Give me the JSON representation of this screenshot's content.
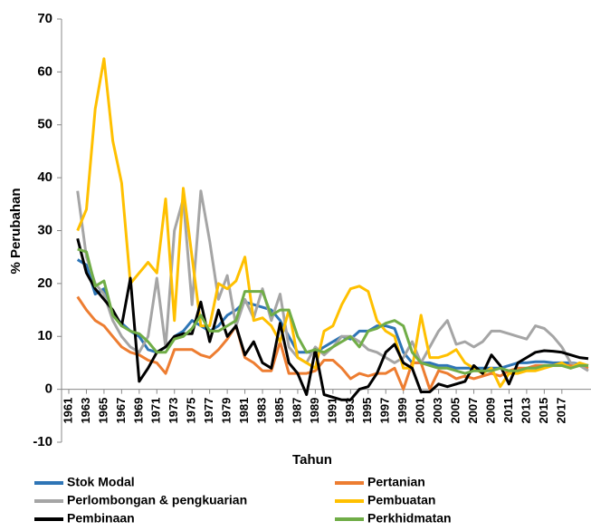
{
  "chart_data": {
    "type": "line",
    "x_label": "Tahun",
    "y_label": "% Perubahan",
    "x": [
      1962,
      1963,
      1964,
      1965,
      1966,
      1967,
      1968,
      1969,
      1970,
      1971,
      1972,
      1973,
      1974,
      1975,
      1976,
      1977,
      1978,
      1979,
      1980,
      1981,
      1982,
      1983,
      1984,
      1985,
      1986,
      1987,
      1988,
      1989,
      1990,
      1991,
      1992,
      1993,
      1994,
      1995,
      1996,
      1997,
      1998,
      1999,
      2000,
      2001,
      2002,
      2003,
      2004,
      2005,
      2006,
      2007,
      2008,
      2009,
      2010,
      2011,
      2012,
      2013,
      2014,
      2015,
      2016,
      2017,
      2018,
      2019,
      2020
    ],
    "xlim": [
      1961,
      2020
    ],
    "xticks": [
      1961,
      1963,
      1965,
      1967,
      1969,
      1971,
      1973,
      1975,
      1977,
      1979,
      1981,
      1983,
      1985,
      1987,
      1989,
      1991,
      1993,
      1995,
      1997,
      1999,
      2001,
      2003,
      2005,
      2007,
      2009,
      2011,
      2013,
      2015,
      2017
    ],
    "ylim": [
      -10,
      70
    ],
    "yticks": [
      -10,
      0,
      10,
      20,
      30,
      40,
      50,
      60,
      70
    ],
    "grid": false,
    "series": [
      {
        "name": "Stok Modal",
        "color": "#2e75b6",
        "values": [
          24.5,
          23.5,
          18,
          19,
          14,
          12.5,
          11,
          10,
          7.5,
          7,
          8,
          10,
          11,
          13,
          12,
          11,
          12,
          14,
          15,
          16.5,
          16,
          15.5,
          15,
          13,
          10,
          7,
          7,
          7,
          8,
          9,
          10,
          9.5,
          11,
          11,
          12,
          12,
          11.5,
          7,
          5,
          5,
          5,
          4.5,
          4.5,
          4,
          4,
          4,
          4,
          4,
          4,
          4.5,
          5,
          5,
          5.2,
          5.2,
          5,
          5,
          5,
          4.8,
          4.5
        ]
      },
      {
        "name": "Pertanian",
        "color": "#ed7d31",
        "values": [
          17.5,
          15,
          13,
          12,
          10,
          8,
          7,
          6.5,
          5.5,
          5,
          3,
          7.5,
          7.5,
          7.5,
          6.5,
          6,
          7.5,
          9.5,
          12,
          6,
          5,
          3.5,
          3.5,
          9,
          3,
          3,
          3,
          3.5,
          5.5,
          5.5,
          4,
          2,
          3,
          2.5,
          3,
          3,
          4,
          0,
          5,
          5,
          0,
          3.5,
          3,
          2,
          2.5,
          2,
          2.5,
          3,
          2.5,
          3.5,
          4,
          4,
          4.5,
          4.5,
          4.5,
          4.5,
          4.5,
          4.5,
          4
        ]
      },
      {
        "name": "Perlombongan & pengkuarian",
        "color": "#a5a5a5",
        "values": [
          37.5,
          25,
          20,
          18,
          13,
          10,
          8,
          7,
          10,
          21,
          8,
          30,
          36,
          16,
          37.5,
          28,
          17,
          21.5,
          12,
          17,
          13.5,
          19,
          13,
          18,
          8,
          6,
          5,
          8,
          6.5,
          8,
          10,
          10,
          9,
          7.5,
          7,
          6,
          5,
          6,
          9,
          5,
          8,
          11,
          13,
          8.5,
          9,
          8,
          9,
          11,
          11,
          10.5,
          10,
          9.5,
          12,
          11.5,
          10,
          8,
          5,
          4.5,
          3.5
        ]
      },
      {
        "name": "Pembuatan",
        "color": "#ffc000",
        "values": [
          30,
          34,
          53,
          62.5,
          47,
          39,
          20,
          22,
          24,
          22,
          36,
          13,
          38,
          25,
          12,
          12,
          20,
          19,
          20.5,
          25,
          13,
          13.5,
          12,
          9,
          15,
          6,
          5,
          4,
          11,
          12,
          16,
          19,
          19.5,
          18.5,
          13,
          11,
          10,
          4,
          4,
          14,
          6,
          6,
          6.5,
          7.5,
          5,
          4,
          3,
          4,
          0.5,
          3,
          3,
          3.5,
          3.5,
          4,
          4.5,
          5,
          4,
          5,
          4.5
        ]
      },
      {
        "name": "Pembinaan",
        "color": "#000000",
        "values": [
          28.5,
          22,
          19,
          17,
          15,
          12,
          21,
          1.5,
          4,
          7,
          8,
          10,
          10.5,
          10.5,
          16.5,
          9,
          15,
          10,
          12,
          6.5,
          9,
          5,
          4,
          12.5,
          5,
          3,
          -1,
          7.5,
          -1,
          -1.5,
          -2,
          -2,
          0,
          0.5,
          3,
          7,
          8.5,
          5,
          4,
          -0.5,
          -0.5,
          1,
          0.5,
          1,
          1.5,
          4.5,
          3,
          6.5,
          4.5,
          1,
          5,
          6,
          7,
          7.3,
          7.2,
          7,
          6.5,
          6,
          5.8
        ]
      },
      {
        "name": "Perkhidmatan",
        "color": "#70ad47",
        "values": [
          26.5,
          26,
          19.5,
          20.5,
          14,
          12,
          11,
          10.5,
          9,
          7,
          7,
          9.5,
          10,
          11.5,
          14,
          11,
          11,
          12,
          13,
          18.5,
          18.5,
          18.5,
          14,
          15,
          15,
          10,
          7,
          7.5,
          7,
          8,
          9,
          10,
          8,
          11,
          11.5,
          12.5,
          13,
          12,
          7,
          5,
          4.5,
          4,
          4,
          3.5,
          3,
          3.5,
          3.5,
          3.5,
          4,
          3.5,
          3.5,
          4,
          4,
          4.5,
          4.5,
          4.5,
          4,
          4.5,
          4.5
        ]
      }
    ]
  }
}
